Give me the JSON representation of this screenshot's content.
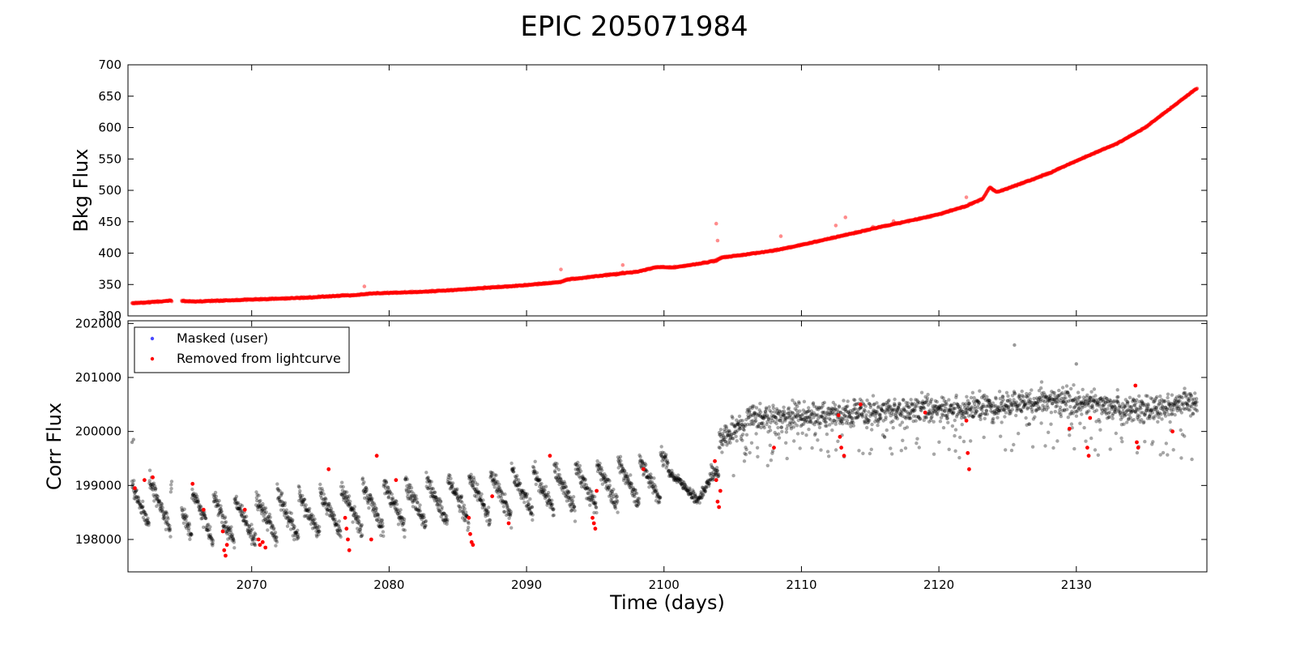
{
  "chart_data": [
    {
      "type": "scatter",
      "title": "EPIC 205071984",
      "xlabel": "",
      "ylabel": "Bkg Flux",
      "xlim": [
        2061,
        2139.5
      ],
      "ylim": [
        300,
        700
      ],
      "xticks": [
        2070,
        2080,
        2090,
        2100,
        2110,
        2120,
        2130
      ],
      "yticks": [
        300,
        350,
        400,
        450,
        500,
        550,
        600,
        650,
        700
      ],
      "grid": false,
      "color": "#ff0000",
      "trend": {
        "x": [
          2061.3,
          2064,
          2066,
          2070,
          2074,
          2078,
          2079,
          2082,
          2086,
          2090,
          2092.5,
          2093,
          2095,
          2097,
          2098,
          2099.5,
          2100.5,
          2102,
          2103.8,
          2104.2,
          2106,
          2108,
          2110,
          2112,
          2114,
          2116,
          2118,
          2120,
          2122,
          2123.2,
          2123.7,
          2124.2,
          2125,
          2128,
          2130,
          2133,
          2135,
          2138.8
        ],
        "y": [
          320,
          324,
          323,
          326,
          329,
          334,
          336,
          338,
          343,
          349,
          354,
          358,
          363,
          368,
          370,
          378,
          377,
          381,
          388,
          393,
          398,
          404,
          413,
          423,
          433,
          443,
          452,
          462,
          475,
          487,
          505,
          497,
          503,
          527,
          547,
          575,
          600,
          663
        ]
      },
      "outliers": {
        "x": [
          2078.2,
          2092.5,
          2097,
          2103.8,
          2103.9,
          2108.5,
          2111,
          2112.5,
          2113.2,
          2115.2,
          2116.7,
          2122
        ],
        "y": [
          347,
          374,
          381,
          447,
          420,
          427,
          419,
          444,
          457,
          442,
          451,
          489
        ]
      }
    },
    {
      "type": "scatter",
      "title": "",
      "xlabel": "Time (days)",
      "ylabel": "Corr Flux",
      "xlim": [
        2061,
        2139.5
      ],
      "ylim": [
        197400,
        202050
      ],
      "xticks": [
        2070,
        2080,
        2090,
        2100,
        2110,
        2120,
        2130
      ],
      "yticks": [
        198000,
        199000,
        200000,
        201000,
        202000
      ],
      "grid": false,
      "legend": {
        "placement": "upper-left",
        "entries": [
          "Masked (user)",
          "Removed from lightcurve"
        ]
      },
      "series": [
        {
          "name": "Masked (user)",
          "color": "#4a4aff",
          "x": [],
          "y": []
        },
        {
          "name": "Removed from lightcurve",
          "color": "#ff0000",
          "x": [
            2061.5,
            2062.2,
            2062.8,
            2065.7,
            2066.5,
            2067.9,
            2068,
            2068.1,
            2068.2,
            2069.5,
            2070.5,
            2070.6,
            2070.8,
            2071,
            2075.6,
            2076.8,
            2076.9,
            2077,
            2077.1,
            2078.7,
            2079.1,
            2080.5,
            2085.8,
            2085.9,
            2086,
            2086.1,
            2087.5,
            2088.7,
            2091.7,
            2094.8,
            2094.9,
            2095,
            2095.1,
            2098.5,
            2103.7,
            2103.8,
            2103.9,
            2104,
            2104.1,
            2108,
            2112.7,
            2112.8,
            2112.9,
            2113.1,
            2114.3,
            2119,
            2122,
            2122.1,
            2122.2,
            2129.5,
            2130.8,
            2130.9,
            2131,
            2134.3,
            2134.4,
            2134.5,
            2137
          ]
        }
      ]
    }
  ],
  "legend_colors": {
    "black_points": "#000000"
  }
}
